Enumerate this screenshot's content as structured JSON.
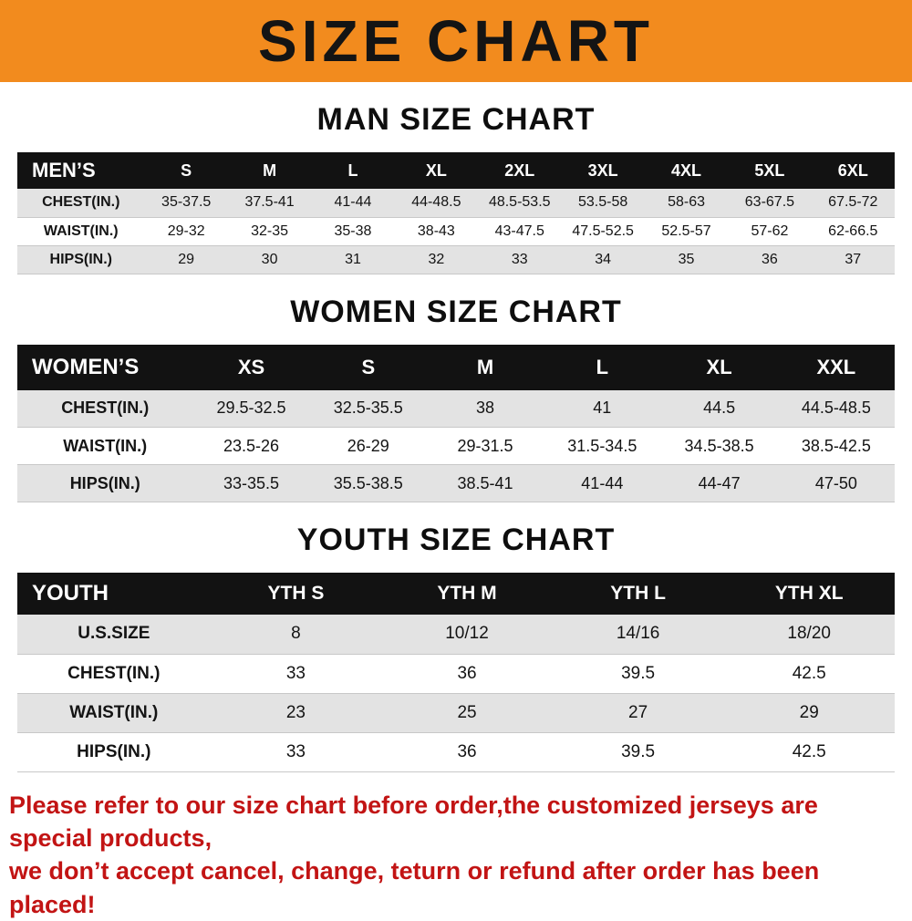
{
  "banner": {
    "title": "SIZE CHART",
    "bg_color": "#f28b1e"
  },
  "chart_data": [
    {
      "type": "table",
      "title": "MAN SIZE CHART",
      "header": [
        "MEN’S",
        "S",
        "M",
        "L",
        "XL",
        "2XL",
        "3XL",
        "4XL",
        "5XL",
        "6XL"
      ],
      "rows": [
        [
          "CHEST(IN.)",
          "35-37.5",
          "37.5-41",
          "41-44",
          "44-48.5",
          "48.5-53.5",
          "53.5-58",
          "58-63",
          "63-67.5",
          "67.5-72"
        ],
        [
          "WAIST(IN.)",
          "29-32",
          "32-35",
          "35-38",
          "38-43",
          "43-47.5",
          "47.5-52.5",
          "52.5-57",
          "57-62",
          "62-66.5"
        ],
        [
          "HIPS(IN.)",
          "29",
          "30",
          "31",
          "32",
          "33",
          "34",
          "35",
          "36",
          "37"
        ]
      ]
    },
    {
      "type": "table",
      "title": "WOMEN SIZE CHART",
      "header": [
        "WOMEN’S",
        "XS",
        "S",
        "M",
        "L",
        "XL",
        "XXL"
      ],
      "rows": [
        [
          "CHEST(IN.)",
          "29.5-32.5",
          "32.5-35.5",
          "38",
          "41",
          "44.5",
          "44.5-48.5"
        ],
        [
          "WAIST(IN.)",
          "23.5-26",
          "26-29",
          "29-31.5",
          "31.5-34.5",
          "34.5-38.5",
          "38.5-42.5"
        ],
        [
          "HIPS(IN.)",
          "33-35.5",
          "35.5-38.5",
          "38.5-41",
          "41-44",
          "44-47",
          "47-50"
        ]
      ]
    },
    {
      "type": "table",
      "title": "YOUTH SIZE CHART",
      "header": [
        "YOUTH",
        "YTH S",
        "YTH M",
        "YTH L",
        "YTH XL"
      ],
      "rows": [
        [
          "U.S.SIZE",
          "8",
          "10/12",
          "14/16",
          "18/20"
        ],
        [
          "CHEST(IN.)",
          "33",
          "36",
          "39.5",
          "42.5"
        ],
        [
          "WAIST(IN.)",
          "23",
          "25",
          "27",
          "29"
        ],
        [
          "HIPS(IN.)",
          "33",
          "36",
          "39.5",
          "42.5"
        ]
      ]
    }
  ],
  "footer": {
    "lines": [
      "Please refer to our size chart before order,the customized jerseys are special products,",
      "we don’t accept cancel, change, teturn or refund after order has been placed!"
    ],
    "color": "#c21414"
  }
}
